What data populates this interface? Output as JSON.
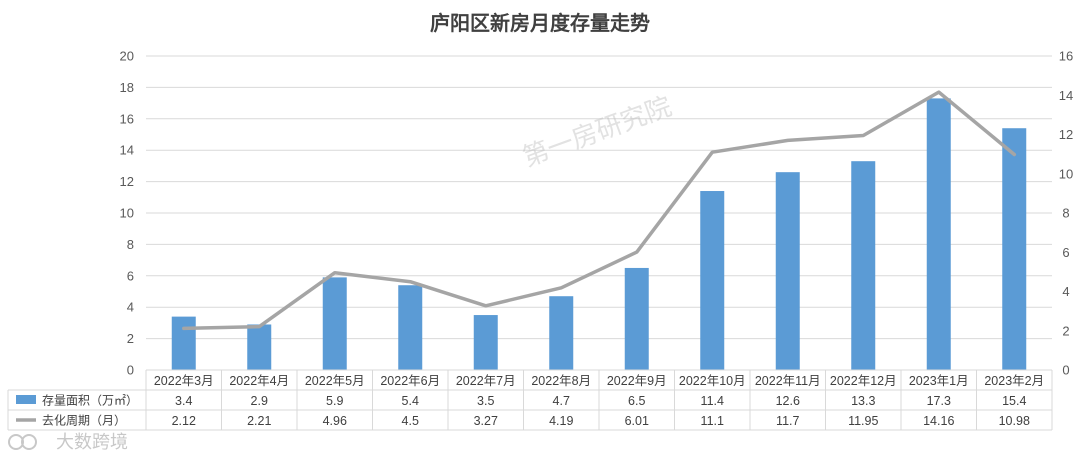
{
  "chart_data": {
    "type": "bar",
    "title": "庐阳区新房月度存量走势",
    "categories": [
      "2022年3月",
      "2022年4月",
      "2022年5月",
      "2022年6月",
      "2022年7月",
      "2022年8月",
      "2022年9月",
      "2022年10月",
      "2022年11月",
      "2022年12月",
      "2023年1月",
      "2023年2月"
    ],
    "series": [
      {
        "name": "存量面积（万㎡）",
        "type": "bar",
        "axis": "left",
        "color": "#5b9bd5",
        "values": [
          3.4,
          2.9,
          5.9,
          5.4,
          3.5,
          4.7,
          6.5,
          11.4,
          12.6,
          13.3,
          17.3,
          15.4
        ]
      },
      {
        "name": "去化周期（月）",
        "type": "line",
        "axis": "right",
        "color": "#a5a5a5",
        "values": [
          2.12,
          2.21,
          4.96,
          4.5,
          3.27,
          4.19,
          6.01,
          11.1,
          11.7,
          11.95,
          14.16,
          10.98
        ]
      }
    ],
    "table_values": [
      [
        "3.4",
        "2.9",
        "5.9",
        "5.4",
        "3.5",
        "4.7",
        "6.5",
        "11.4",
        "12.6",
        "13.3",
        "17.3",
        "15.4"
      ],
      [
        "2.12",
        "2.21",
        "4.96",
        "4.5",
        "3.27",
        "4.19",
        "6.01",
        "11.1",
        "11.7",
        "11.95",
        "14.16",
        "10.98"
      ]
    ],
    "ylim_left": [
      0,
      20
    ],
    "yticks_left": [
      "0",
      "2",
      "4",
      "6",
      "8",
      "10",
      "12",
      "14",
      "16",
      "18",
      "20"
    ],
    "ylim_right": [
      0,
      16
    ],
    "yticks_right": [
      "0",
      "2",
      "4",
      "6",
      "8",
      "10",
      "12",
      "14",
      "16"
    ],
    "grid": true,
    "legend": "data-table-bottom",
    "watermark": "第一房研究院",
    "logo": "大数跨境"
  }
}
